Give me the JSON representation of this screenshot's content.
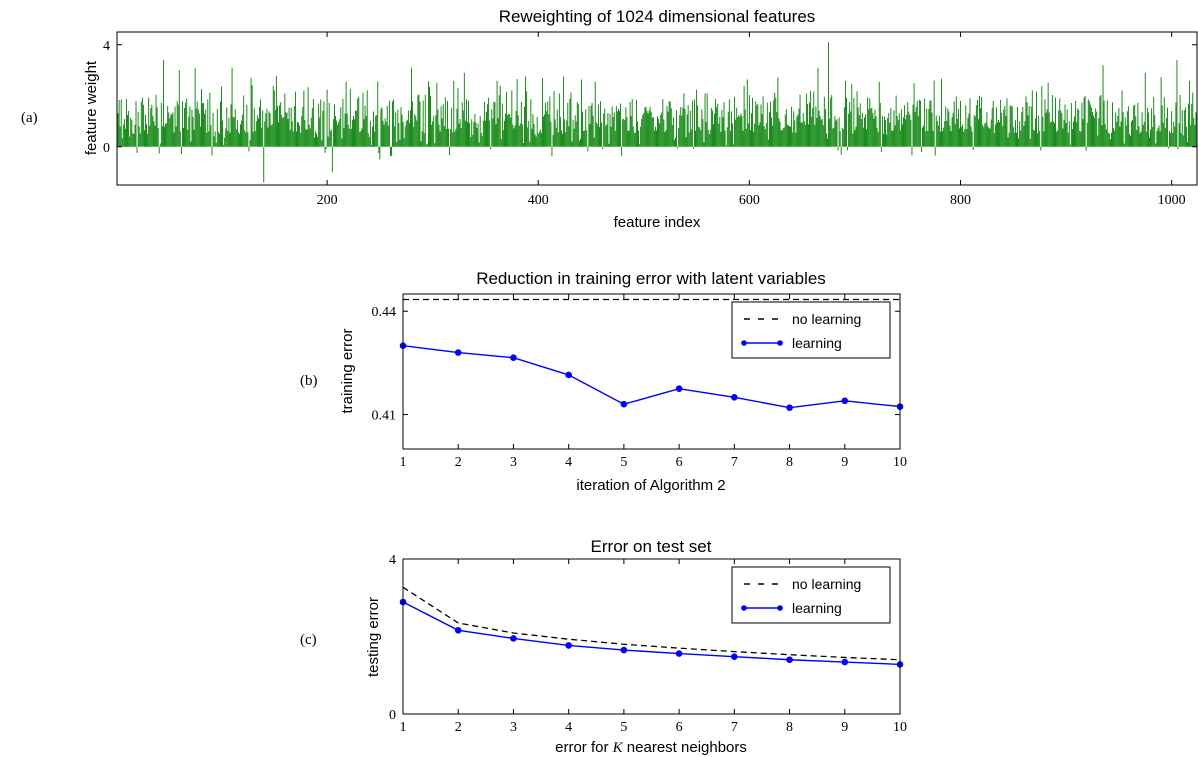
{
  "panel_labels": [
    "(a)",
    "(b)",
    "(c)"
  ],
  "chart_data": [
    {
      "type": "bar",
      "title": "Reweighting of 1024 dimensional features",
      "xlabel": "feature index",
      "ylabel": "feature weight",
      "xlim": [
        1,
        1024
      ],
      "ylim": [
        -1.5,
        4.5
      ],
      "xticks": [
        200,
        400,
        600,
        800,
        1000
      ],
      "yticks": [
        0,
        4
      ],
      "n_features": 1024,
      "color": "#008000",
      "notable_values": [
        {
          "x": 45,
          "y": 3.4
        },
        {
          "x": 60,
          "y": 3.0
        },
        {
          "x": 75,
          "y": 3.1
        },
        {
          "x": 110,
          "y": 3.1
        },
        {
          "x": 140,
          "y": -1.4
        },
        {
          "x": 205,
          "y": -1.0
        },
        {
          "x": 250,
          "y": -0.5
        },
        {
          "x": 280,
          "y": 3.1
        },
        {
          "x": 330,
          "y": 2.9
        },
        {
          "x": 675,
          "y": 4.1
        },
        {
          "x": 665,
          "y": 3.1
        },
        {
          "x": 935,
          "y": 3.2
        },
        {
          "x": 1005,
          "y": 3.4
        },
        {
          "x": 975,
          "y": 2.9
        }
      ],
      "typical_range": [
        0.5,
        2.3
      ]
    },
    {
      "type": "line",
      "title": "Reduction in training error with latent variables",
      "xlabel": "iteration of Algorithm 2",
      "ylabel": "training error",
      "xlim": [
        1,
        10
      ],
      "ylim": [
        0.4,
        0.445
      ],
      "xticks": [
        1,
        2,
        3,
        4,
        5,
        6,
        7,
        8,
        9,
        10
      ],
      "yticks": [
        0.41,
        0.44
      ],
      "ytick_labels": [
        "0.41",
        "0.44"
      ],
      "legend_position": "top-right",
      "series": [
        {
          "name": "no learning",
          "style": "dashed",
          "color": "#000000",
          "x": [
            1,
            10
          ],
          "y": [
            0.4434,
            0.4434
          ]
        },
        {
          "name": "learning",
          "style": "solid-markers",
          "color": "#0000ff",
          "x": [
            1,
            2,
            3,
            4,
            5,
            6,
            7,
            8,
            9,
            10
          ],
          "y": [
            0.43,
            0.428,
            0.4265,
            0.4215,
            0.413,
            0.4175,
            0.415,
            0.412,
            0.414,
            0.4123
          ]
        }
      ]
    },
    {
      "type": "line",
      "title": "Error on test set",
      "xlabel_prefix": "error for ",
      "xlabel_var": "K",
      "xlabel_suffix": " nearest neighbors",
      "ylabel": "testing error",
      "xlim": [
        1,
        10
      ],
      "ylim": [
        0,
        4
      ],
      "xticks": [
        1,
        2,
        3,
        4,
        5,
        6,
        7,
        8,
        9,
        10
      ],
      "yticks": [
        0,
        4
      ],
      "legend_position": "top-right",
      "series": [
        {
          "name": "no learning",
          "style": "dashed",
          "color": "#000000",
          "x": [
            1,
            2,
            3,
            4,
            5,
            6,
            7,
            8,
            9,
            10
          ],
          "y": [
            3.27,
            2.35,
            2.09,
            1.93,
            1.8,
            1.7,
            1.61,
            1.53,
            1.46,
            1.4
          ]
        },
        {
          "name": "learning",
          "style": "solid-markers",
          "color": "#0000ff",
          "x": [
            1,
            2,
            3,
            4,
            5,
            6,
            7,
            8,
            9,
            10
          ],
          "y": [
            2.89,
            2.16,
            1.95,
            1.77,
            1.65,
            1.56,
            1.48,
            1.4,
            1.34,
            1.28
          ]
        }
      ]
    }
  ]
}
